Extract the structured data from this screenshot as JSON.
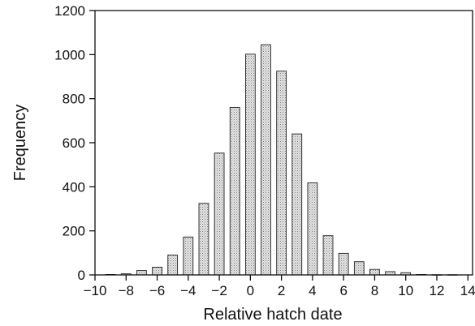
{
  "chart_data": {
    "type": "bar",
    "title": "",
    "xlabel": "Relative hatch date",
    "ylabel": "Frequency",
    "x": [
      -9,
      -8,
      -7,
      -6,
      -5,
      -4,
      -3,
      -2,
      -1,
      0,
      1,
      2,
      3,
      4,
      5,
      6,
      7,
      8,
      9,
      10,
      11,
      12,
      13
    ],
    "values": [
      2,
      5,
      20,
      35,
      90,
      172,
      325,
      553,
      760,
      1002,
      1045,
      925,
      640,
      418,
      178,
      98,
      60,
      25,
      15,
      10,
      2,
      1,
      1
    ],
    "xlim": [
      -10,
      14.3
    ],
    "ylim": [
      0,
      1200
    ],
    "xticks": [
      -10,
      -8,
      -6,
      -4,
      -2,
      0,
      2,
      4,
      6,
      8,
      10,
      12,
      14
    ],
    "xtick_labels": [
      "−10",
      "−8",
      "−6",
      "−4",
      "−2",
      "0",
      "2",
      "4",
      "6",
      "8",
      "10",
      "12",
      "14"
    ],
    "yticks": [
      0,
      200,
      400,
      600,
      800,
      1000,
      1200
    ],
    "ytick_labels": [
      "0",
      "200",
      "400",
      "600",
      "800",
      "1000",
      "1200"
    ],
    "grid": false,
    "legend": "none",
    "bar_fill": "#d9d9d9",
    "bar_pattern": "stippled"
  }
}
